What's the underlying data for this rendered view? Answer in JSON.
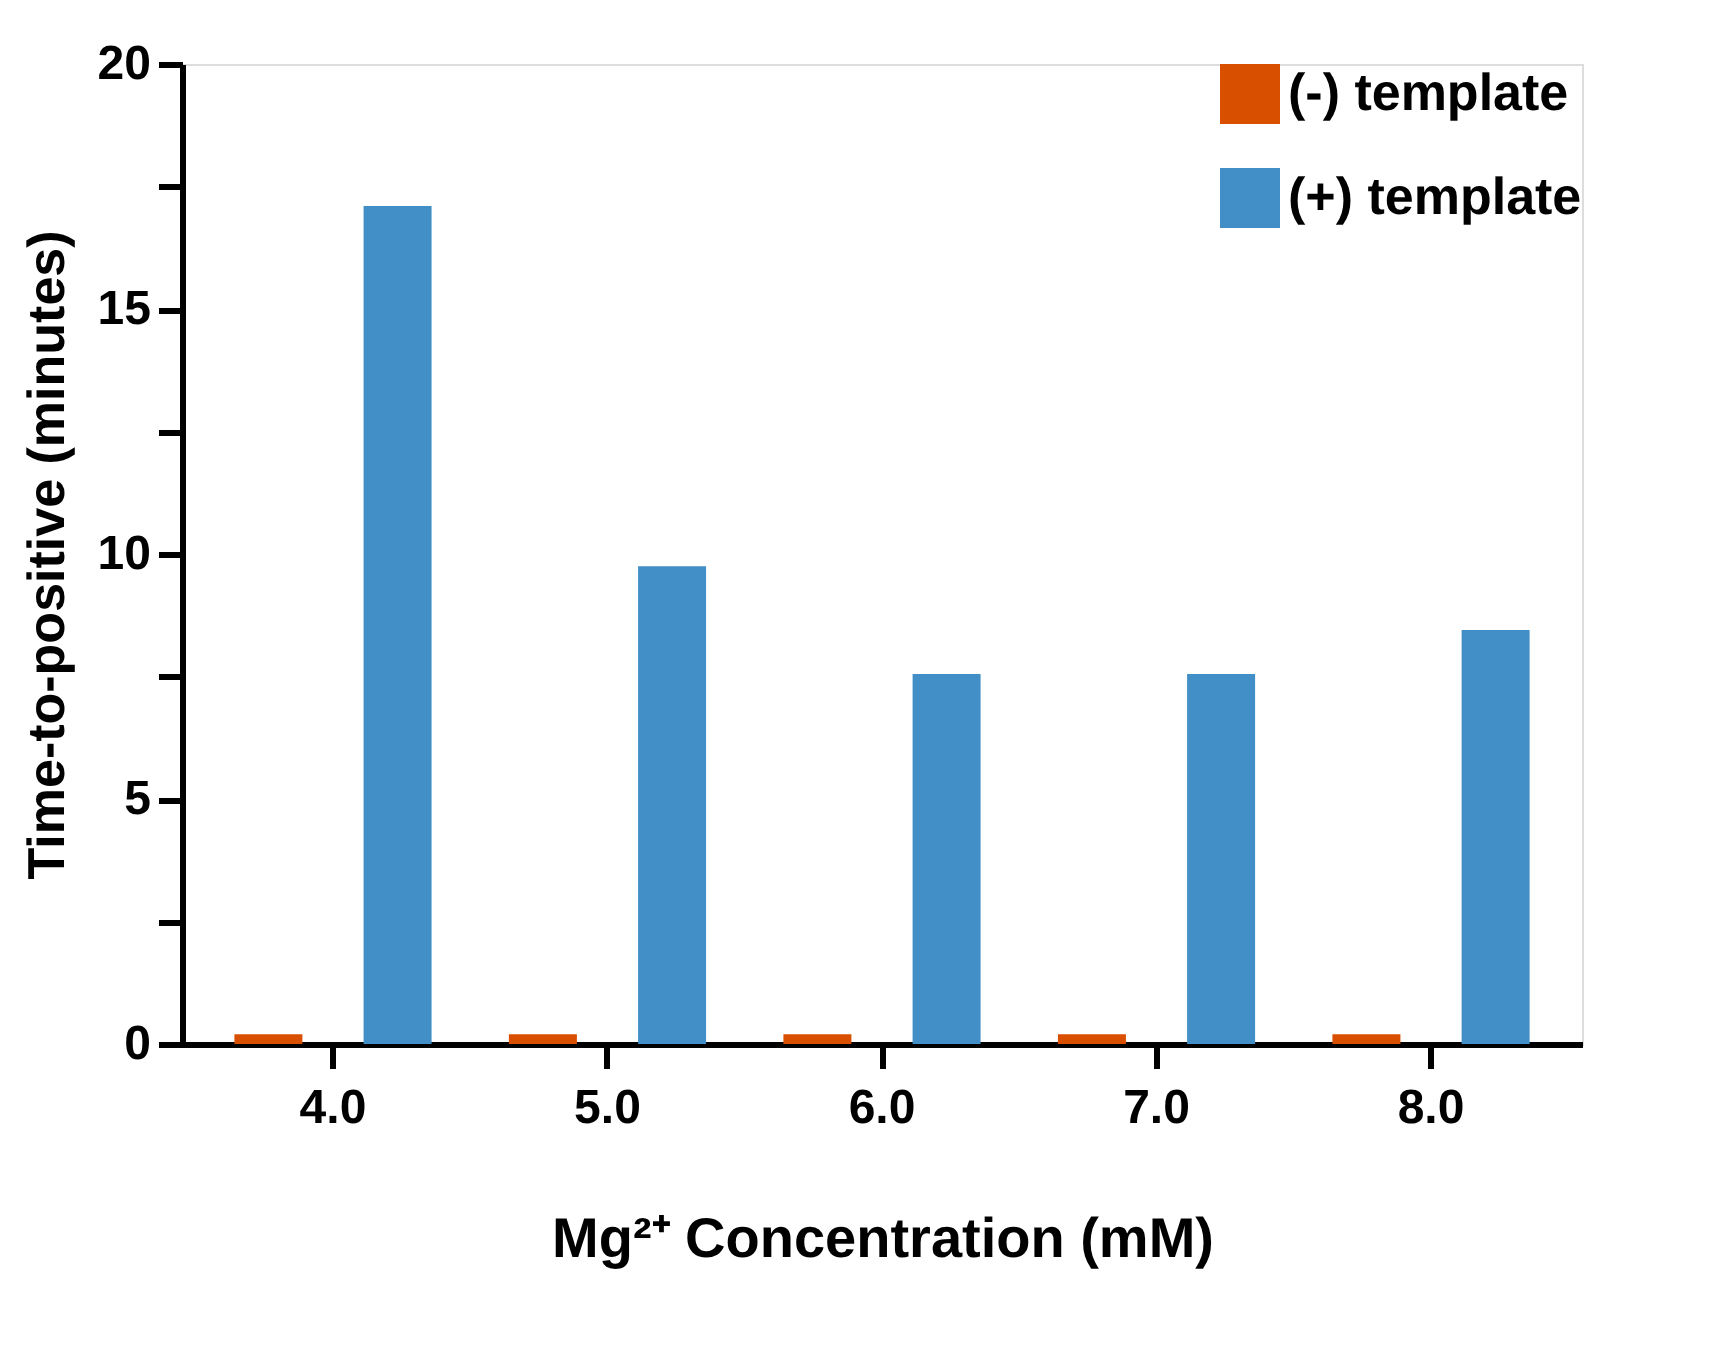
{
  "chart_data": {
    "type": "bar",
    "xlabel": "Mg²⁺ Concentration (mM)",
    "ylabel": "Time-to-positive (minutes)",
    "categories": [
      "4.0",
      "5.0",
      "6.0",
      "7.0",
      "8.0"
    ],
    "series": [
      {
        "name": "(-) template",
        "color": "#d94f00",
        "values": [
          0.2,
          0.2,
          0.2,
          0.2,
          0.2
        ]
      },
      {
        "name": "(+) template",
        "color": "#418fc6",
        "values": [
          17.1,
          9.75,
          7.55,
          7.55,
          8.45
        ]
      }
    ],
    "ylim": [
      0,
      20
    ],
    "yticks": [
      0,
      {
        "value": 2.5,
        "label": null
      },
      5,
      {
        "value": 7.5,
        "label": null
      },
      10,
      {
        "value": 12.5,
        "label": null
      },
      15,
      {
        "value": 17.5,
        "label": null
      },
      20
    ],
    "grid": false,
    "legend": "top right"
  }
}
